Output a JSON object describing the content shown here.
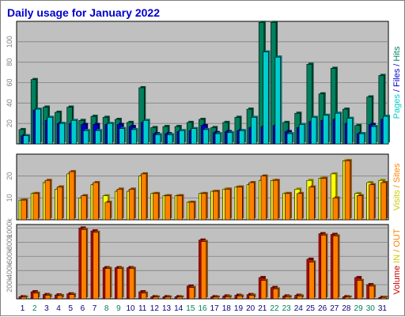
{
  "chart_data": [
    {
      "type": "bar",
      "title": "Daily usage for January 2022",
      "ylabel_parts": [
        {
          "text": "Pages",
          "color": "#00cccc"
        },
        {
          "text": " / ",
          "color": "#0000cc"
        },
        {
          "text": "Files",
          "color": "#0000cc"
        },
        {
          "text": " / ",
          "color": "#0000cc"
        },
        {
          "text": "Hits",
          "color": "#00805c"
        }
      ],
      "categories": [
        "1",
        "2",
        "3",
        "4",
        "5",
        "6",
        "7",
        "8",
        "9",
        "10",
        "11",
        "12",
        "13",
        "14",
        "15",
        "16",
        "17",
        "18",
        "19",
        "20",
        "21",
        "22",
        "23",
        "24",
        "25",
        "26",
        "27",
        "28",
        "29",
        "30",
        "31"
      ],
      "weekend_categories": [
        "2",
        "8",
        "9",
        "15",
        "16",
        "22",
        "23",
        "29",
        "30"
      ],
      "yticks": [
        20,
        40,
        60,
        80,
        100
      ],
      "ylim": [
        0,
        120
      ],
      "grid": true,
      "series": [
        {
          "name": "Hits",
          "color": "#00805c",
          "values": [
            14,
            63,
            36,
            31,
            36,
            23,
            27,
            26,
            24,
            21,
            55,
            16,
            17,
            17,
            21,
            24,
            16,
            21,
            26,
            34,
            119,
            119,
            21,
            30,
            78,
            49,
            74,
            34,
            18,
            46,
            67
          ]
        },
        {
          "name": "Files",
          "color": "#0000cc",
          "values": [
            8,
            33,
            23,
            20,
            20,
            19,
            19,
            19,
            19,
            17,
            21,
            10,
            10,
            12,
            13,
            18,
            11,
            12,
            13,
            16,
            17,
            18,
            12,
            16,
            22,
            23,
            24,
            20,
            10,
            19,
            24
          ]
        },
        {
          "name": "Pages",
          "color": "#00cccc",
          "values": [
            8,
            34,
            26,
            20,
            23,
            13,
            13,
            20,
            15,
            14,
            23,
            9,
            9,
            13,
            15,
            14,
            10,
            11,
            13,
            26,
            90,
            85,
            10,
            19,
            26,
            28,
            30,
            25,
            10,
            17,
            27
          ]
        }
      ]
    },
    {
      "type": "bar",
      "ylabel_parts": [
        {
          "text": "Visits",
          "color": "#cccc00"
        },
        {
          "text": " / ",
          "color": "#ff8000"
        },
        {
          "text": "Sites",
          "color": "#ff8000"
        }
      ],
      "categories": [
        "1",
        "2",
        "3",
        "4",
        "5",
        "6",
        "7",
        "8",
        "9",
        "10",
        "11",
        "12",
        "13",
        "14",
        "15",
        "16",
        "17",
        "18",
        "19",
        "20",
        "21",
        "22",
        "23",
        "24",
        "25",
        "26",
        "27",
        "28",
        "29",
        "30",
        "31"
      ],
      "yticks": [
        10,
        20
      ],
      "ylim": [
        0,
        30
      ],
      "grid": true,
      "series": [
        {
          "name": "Visits",
          "color": "#ffff00",
          "values": [
            9,
            12,
            17,
            14,
            21,
            10,
            16,
            11,
            13,
            13,
            20,
            12,
            11,
            11,
            8,
            12,
            13,
            14,
            15,
            16,
            18,
            18,
            12,
            14,
            18,
            19,
            21,
            27,
            12,
            17,
            18
          ]
        },
        {
          "name": "Sites",
          "color": "#ff8000",
          "values": [
            9,
            12,
            18,
            15,
            22,
            11,
            17,
            8,
            14,
            14,
            21,
            12,
            11,
            11,
            8,
            12,
            13,
            14,
            15,
            17,
            20,
            18,
            12,
            12,
            15,
            19,
            10,
            27,
            11,
            16,
            17
          ]
        }
      ]
    },
    {
      "type": "bar",
      "ylabel_parts": [
        {
          "text": "Volume",
          "color": "#cc0000"
        },
        {
          "text": "  IN  ",
          "color": "#cccc00"
        },
        {
          "text": "/",
          "color": "#ff8000"
        },
        {
          "text": " OUT",
          "color": "#ff8000"
        }
      ],
      "categories": [
        "1",
        "2",
        "3",
        "4",
        "5",
        "6",
        "7",
        "8",
        "9",
        "10",
        "11",
        "12",
        "13",
        "14",
        "15",
        "16",
        "17",
        "18",
        "19",
        "20",
        "21",
        "22",
        "23",
        "24",
        "25",
        "26",
        "27",
        "28",
        "29",
        "30",
        "31"
      ],
      "yticks": [
        "200k",
        "400k",
        "600k",
        "800k",
        "1000k"
      ],
      "ytick_values": [
        200,
        400,
        600,
        800,
        1000
      ],
      "ylim": [
        0,
        1050
      ],
      "series": [
        {
          "name": "Volume",
          "color": "#cc0000",
          "values": [
            30,
            100,
            60,
            55,
            70,
            1000,
            960,
            440,
            440,
            440,
            100,
            30,
            30,
            30,
            180,
            830,
            30,
            40,
            50,
            60,
            300,
            160,
            40,
            50,
            560,
            920,
            910,
            30,
            300,
            200,
            20
          ]
        },
        {
          "name": "OUT",
          "color": "#ff8000",
          "values": [
            25,
            80,
            50,
            45,
            60,
            980,
            940,
            430,
            430,
            430,
            80,
            25,
            25,
            25,
            160,
            810,
            25,
            30,
            40,
            50,
            260,
            140,
            30,
            40,
            520,
            900,
            890,
            25,
            260,
            180,
            20
          ]
        }
      ]
    }
  ]
}
